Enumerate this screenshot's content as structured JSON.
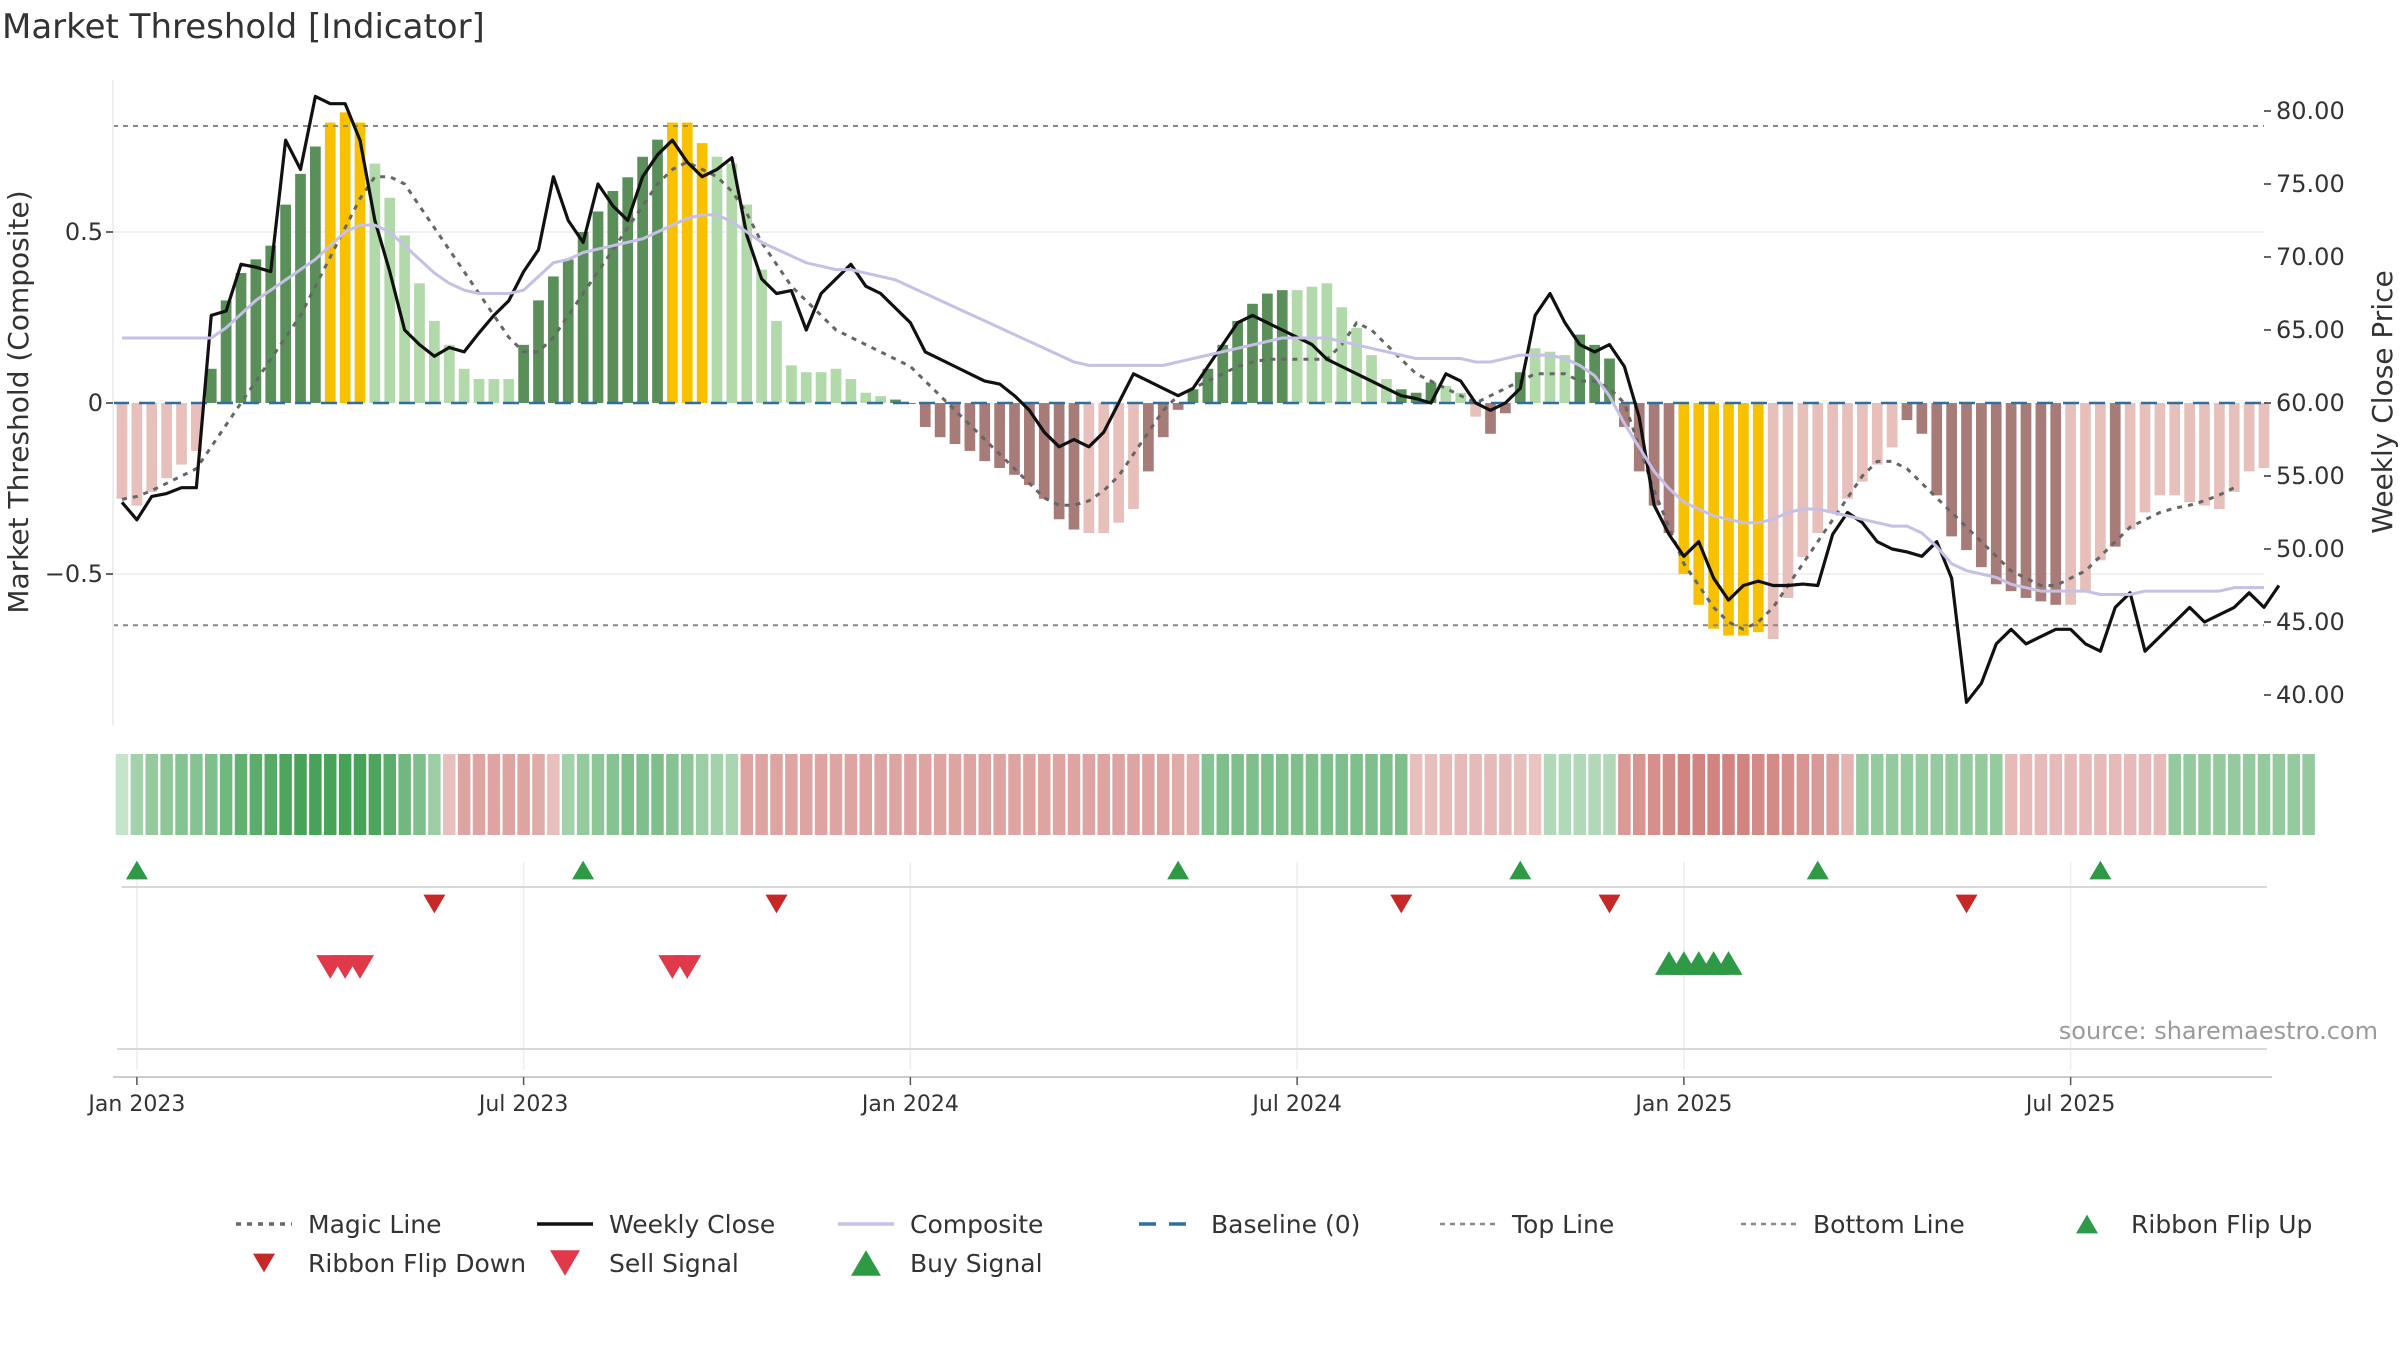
{
  "chart_data": {
    "type": "bar",
    "title": "Market Threshold [Indicator]",
    "ylabel_left": "Market Threshold (Composite)",
    "ylabel_right": "Weekly Close Price",
    "source": "source: sharemaestro.com",
    "ylim_left": [
      -0.95,
      0.98
    ],
    "ylim_right": [
      38.0,
      82.0
    ],
    "yticks_left": [
      {
        "value": 0.5,
        "label": "0.5"
      },
      {
        "value": 0,
        "label": "0"
      },
      {
        "value": -0.5,
        "label": "−0.5"
      }
    ],
    "yticks_right": [
      {
        "value": 80,
        "label": "80.00"
      },
      {
        "value": 75,
        "label": "75.00"
      },
      {
        "value": 70,
        "label": "70.00"
      },
      {
        "value": 65,
        "label": "65.00"
      },
      {
        "value": 60,
        "label": "60.00"
      },
      {
        "value": 55,
        "label": "55.00"
      },
      {
        "value": 50,
        "label": "50.00"
      },
      {
        "value": 45,
        "label": "45.00"
      },
      {
        "value": 40,
        "label": "40.00"
      }
    ],
    "xticks": [
      {
        "week": 1,
        "label": "Jan 2023"
      },
      {
        "week": 27,
        "label": "Jul 2023"
      },
      {
        "week": 53,
        "label": "Jan 2024"
      },
      {
        "week": 79,
        "label": "Jul 2024"
      },
      {
        "week": 105,
        "label": "Jan 2025"
      },
      {
        "week": 131,
        "label": "Jul 2025"
      }
    ],
    "top_line": 0.81,
    "bottom_line": -0.65,
    "baseline": 0,
    "weeks": 145,
    "bars": [
      -0.28,
      -0.3,
      -0.26,
      -0.22,
      -0.18,
      -0.14,
      0.1,
      0.3,
      0.38,
      0.42,
      0.46,
      0.58,
      0.67,
      0.75,
      0.82,
      0.85,
      0.82,
      0.7,
      0.6,
      0.49,
      0.35,
      0.24,
      0.17,
      0.1,
      0.07,
      0.07,
      0.07,
      0.17,
      0.3,
      0.37,
      0.42,
      0.5,
      0.56,
      0.62,
      0.66,
      0.72,
      0.77,
      0.82,
      0.82,
      0.76,
      0.72,
      0.7,
      0.58,
      0.39,
      0.24,
      0.11,
      0.09,
      0.09,
      0.1,
      0.07,
      0.03,
      0.02,
      0.01,
      0.0,
      -0.07,
      -0.1,
      -0.12,
      -0.14,
      -0.17,
      -0.19,
      -0.21,
      -0.24,
      -0.28,
      -0.34,
      -0.37,
      -0.38,
      -0.38,
      -0.35,
      -0.31,
      -0.2,
      -0.1,
      -0.02,
      0.04,
      0.1,
      0.17,
      0.24,
      0.29,
      0.32,
      0.33,
      0.33,
      0.34,
      0.35,
      0.28,
      0.22,
      0.14,
      0.07,
      0.04,
      0.03,
      0.06,
      0.05,
      0.03,
      -0.04,
      -0.09,
      -0.03,
      0.09,
      0.16,
      0.15,
      0.14,
      0.2,
      0.17,
      0.13,
      -0.07,
      -0.2,
      -0.3,
      -0.38,
      -0.5,
      -0.59,
      -0.66,
      -0.68,
      -0.68,
      -0.67,
      -0.69,
      -0.57,
      -0.45,
      -0.38,
      -0.32,
      -0.28,
      -0.23,
      -0.18,
      -0.13,
      -0.05,
      -0.09,
      -0.27,
      -0.39,
      -0.43,
      -0.48,
      -0.53,
      -0.55,
      -0.57,
      -0.58,
      -0.59,
      -0.59,
      -0.55,
      -0.46,
      -0.42,
      -0.37,
      -0.32,
      -0.27,
      -0.27,
      -0.29,
      -0.3,
      -0.31,
      -0.26,
      -0.2,
      -0.19
    ],
    "bar_colors": {
      "strong_up": "#5a8f5a",
      "weak_up": "#b2d9aa",
      "strong_down": "#a77b78",
      "weak_down": "#e7c0bb",
      "extreme": "#f7c100"
    },
    "bar_classes": "wwwwwwsssssssseeewwwwwwwwwwsssssssssseeewwwwwwwwwwwwssssssssssssswwwwsssssssssswwwwwwwssswwwssswwwssssssseeeeeewwwwwwwwwssssssssssswwwswwwww",
    "series": [
      {
        "name": "Magic Line",
        "style": "dotted",
        "color": "#666666",
        "values": [
          53.4,
          53.6,
          54.0,
          54.5,
          55.0,
          55.5,
          57.0,
          58.5,
          60.0,
          61.5,
          63.0,
          64.5,
          66.0,
          68.0,
          70.0,
          72.0,
          74.0,
          75.5,
          75.5,
          75.0,
          73.5,
          72.0,
          70.5,
          69.0,
          67.5,
          66.0,
          64.5,
          63.5,
          63.5,
          64.5,
          66.0,
          67.5,
          69.0,
          70.5,
          72.0,
          73.5,
          75.0,
          76.0,
          76.5,
          76.0,
          75.5,
          74.5,
          73.0,
          71.0,
          69.5,
          68.0,
          67.0,
          66.0,
          65.0,
          64.5,
          64.0,
          63.5,
          63.0,
          62.5,
          61.5,
          60.5,
          59.5,
          58.5,
          57.5,
          56.5,
          55.5,
          54.5,
          53.5,
          53.0,
          53.0,
          53.3,
          54.0,
          55.0,
          56.5,
          58.0,
          59.5,
          60.5,
          61.0,
          61.5,
          62.0,
          62.5,
          62.8,
          63.0,
          63.0,
          63.0,
          63.0,
          63.0,
          64.0,
          65.5,
          65.0,
          64.0,
          63.0,
          62.0,
          61.5,
          61.0,
          60.5,
          60.0,
          60.5,
          61.0,
          61.5,
          62.0,
          62.0,
          62.0,
          61.5,
          61.5,
          61.0,
          60.0,
          57.0,
          54.0,
          51.5,
          49.0,
          47.5,
          46.0,
          45.0,
          44.5,
          45.0,
          46.0,
          47.5,
          49.0,
          50.5,
          52.0,
          53.5,
          55.0,
          56.0,
          56.0,
          55.5,
          54.5,
          53.5,
          52.5,
          51.5,
          50.5,
          49.5,
          48.5,
          48.0,
          47.5,
          47.5,
          48.0,
          48.5,
          49.5,
          50.5,
          51.5,
          52.0,
          52.5,
          52.8,
          53.0,
          53.3,
          53.7,
          54.2
        ]
      },
      {
        "name": "Weekly Close",
        "style": "solid",
        "color": "#111111",
        "values": [
          53.2,
          52.0,
          53.6,
          53.8,
          54.2,
          54.2,
          66.0,
          66.3,
          69.5,
          69.3,
          69.0,
          78.0,
          76.0,
          81.0,
          80.5,
          80.5,
          78.0,
          72.5,
          69.0,
          65.0,
          64.0,
          63.2,
          63.8,
          63.5,
          64.8,
          66.0,
          67.0,
          69.0,
          70.5,
          75.5,
          72.5,
          71.0,
          75.0,
          73.5,
          72.5,
          75.5,
          77.0,
          78.0,
          76.5,
          75.5,
          76.0,
          76.8,
          71.5,
          68.5,
          67.5,
          67.7,
          65.0,
          67.5,
          68.5,
          69.5,
          68.0,
          67.5,
          66.5,
          65.5,
          63.5,
          63.0,
          62.5,
          62.0,
          61.5,
          61.3,
          60.5,
          59.5,
          58.0,
          57.0,
          57.5,
          57.0,
          58.0,
          60.0,
          62.0,
          61.5,
          61.0,
          60.5,
          61.0,
          62.5,
          64.0,
          65.5,
          66.0,
          65.5,
          65.0,
          64.5,
          64.0,
          63.0,
          62.5,
          62.0,
          61.5,
          61.0,
          60.5,
          60.3,
          60.0,
          62.0,
          61.5,
          60.0,
          59.5,
          60.0,
          61.0,
          66.0,
          67.5,
          65.5,
          64.0,
          63.5,
          64.0,
          62.5,
          59.0,
          53.0,
          51.0,
          49.5,
          50.5,
          48.0,
          46.5,
          47.5,
          47.8,
          47.5,
          47.5,
          47.6,
          47.5,
          51.0,
          52.5,
          51.8,
          50.5,
          50.0,
          49.8,
          49.5,
          50.5,
          48.0,
          39.5,
          40.8,
          43.5,
          44.5,
          43.5,
          44.0,
          44.5,
          44.5,
          43.5,
          43.0,
          46.0,
          47.0,
          43.0,
          44.0,
          45.0,
          46.0,
          45.0,
          45.5,
          46.0,
          47.0,
          46.0,
          47.5
        ]
      },
      {
        "name": "Composite",
        "style": "solid",
        "color": "#c6bfe6",
        "values": [
          0.19,
          0.19,
          0.19,
          0.19,
          0.19,
          0.19,
          0.19,
          0.22,
          0.26,
          0.3,
          0.33,
          0.36,
          0.39,
          0.42,
          0.46,
          0.5,
          0.52,
          0.52,
          0.5,
          0.46,
          0.42,
          0.38,
          0.35,
          0.33,
          0.32,
          0.32,
          0.32,
          0.33,
          0.37,
          0.41,
          0.42,
          0.44,
          0.45,
          0.46,
          0.47,
          0.48,
          0.5,
          0.52,
          0.54,
          0.55,
          0.55,
          0.53,
          0.5,
          0.47,
          0.45,
          0.43,
          0.41,
          0.4,
          0.39,
          0.39,
          0.38,
          0.37,
          0.36,
          0.34,
          0.32,
          0.3,
          0.28,
          0.26,
          0.24,
          0.22,
          0.2,
          0.18,
          0.16,
          0.14,
          0.12,
          0.11,
          0.11,
          0.11,
          0.11,
          0.11,
          0.11,
          0.12,
          0.13,
          0.14,
          0.15,
          0.16,
          0.17,
          0.18,
          0.19,
          0.19,
          0.19,
          0.19,
          0.18,
          0.17,
          0.16,
          0.15,
          0.14,
          0.13,
          0.13,
          0.13,
          0.13,
          0.12,
          0.12,
          0.13,
          0.14,
          0.14,
          0.14,
          0.13,
          0.11,
          0.08,
          0.02,
          -0.06,
          -0.13,
          -0.2,
          -0.25,
          -0.29,
          -0.31,
          -0.33,
          -0.34,
          -0.35,
          -0.35,
          -0.34,
          -0.32,
          -0.31,
          -0.31,
          -0.32,
          -0.33,
          -0.34,
          -0.35,
          -0.36,
          -0.36,
          -0.38,
          -0.42,
          -0.47,
          -0.49,
          -0.5,
          -0.51,
          -0.53,
          -0.54,
          -0.55,
          -0.55,
          -0.55,
          -0.55,
          -0.56,
          -0.56,
          -0.56,
          -0.55,
          -0.55,
          -0.55,
          -0.55,
          -0.55,
          -0.55,
          -0.54,
          -0.54,
          -0.54
        ]
      }
    ],
    "ribbon": {
      "values": [
        0.1,
        0.35,
        0.45,
        0.5,
        0.55,
        0.55,
        0.6,
        0.7,
        0.8,
        0.85,
        0.9,
        0.95,
        1.0,
        1.0,
        1.0,
        1.0,
        1.0,
        0.95,
        0.85,
        0.7,
        0.6,
        0.4,
        -0.3,
        -0.55,
        -0.55,
        -0.55,
        -0.55,
        -0.55,
        -0.5,
        -0.3,
        0.35,
        0.45,
        0.5,
        0.55,
        0.6,
        0.6,
        0.6,
        0.55,
        0.5,
        0.4,
        0.35,
        0.3,
        -0.55,
        -0.55,
        -0.55,
        -0.55,
        -0.55,
        -0.55,
        -0.55,
        -0.55,
        -0.55,
        -0.55,
        -0.55,
        -0.55,
        -0.55,
        -0.55,
        -0.55,
        -0.55,
        -0.55,
        -0.55,
        -0.55,
        -0.55,
        -0.55,
        -0.55,
        -0.55,
        -0.55,
        -0.55,
        -0.55,
        -0.55,
        -0.55,
        -0.55,
        -0.5,
        -0.45,
        0.55,
        0.6,
        0.6,
        0.6,
        0.6,
        0.6,
        0.6,
        0.6,
        0.6,
        0.6,
        0.6,
        0.6,
        0.6,
        0.6,
        -0.3,
        -0.3,
        -0.35,
        -0.35,
        -0.35,
        -0.35,
        -0.35,
        -0.3,
        -0.25,
        0.25,
        0.25,
        0.25,
        0.25,
        0.25,
        -0.65,
        -0.7,
        -0.75,
        -0.8,
        -0.85,
        -0.85,
        -0.85,
        -0.85,
        -0.85,
        -0.8,
        -0.8,
        -0.75,
        -0.7,
        -0.65,
        -0.6,
        -0.4,
        0.45,
        0.45,
        0.45,
        0.45,
        0.45,
        0.45,
        0.45,
        0.45,
        0.45,
        0.45,
        -0.35,
        -0.35,
        -0.35,
        -0.35,
        -0.35,
        -0.35,
        -0.35,
        -0.35,
        -0.35,
        -0.35,
        -0.35,
        0.45,
        0.45,
        0.45,
        0.45,
        0.45,
        0.45,
        0.45,
        0.45,
        0.45,
        0.45
      ],
      "up_color": "#3d9e4f",
      "down_color": "#c96d69"
    },
    "ribbon_flip_up": [
      1,
      31,
      71,
      94,
      114,
      133
    ],
    "ribbon_flip_down": [
      21,
      44,
      86,
      100,
      124
    ],
    "sell_signals": [
      14,
      15,
      16,
      37,
      38
    ],
    "buy_signals": [
      104,
      105,
      106,
      107,
      108
    ],
    "legend": [
      {
        "name": "Magic Line",
        "kind": "dotted",
        "color": "#666666"
      },
      {
        "name": "Weekly Close",
        "kind": "solid",
        "color": "#111111"
      },
      {
        "name": "Composite",
        "kind": "solid",
        "color": "#c6bfe6"
      },
      {
        "name": "Baseline (0)",
        "kind": "dashed",
        "color": "#2f6f9f"
      },
      {
        "name": "Top Line",
        "kind": "dotted-light",
        "color": "#888888"
      },
      {
        "name": "Bottom Line",
        "kind": "dotted-light",
        "color": "#888888"
      },
      {
        "name": "Ribbon Flip Up",
        "kind": "tri-up",
        "color": "#2e9a46"
      },
      {
        "name": "Ribbon Flip Down",
        "kind": "tri-down",
        "color": "#c62828"
      },
      {
        "name": "Sell Signal",
        "kind": "tri-down-lg",
        "color": "#e0394a"
      },
      {
        "name": "Buy Signal",
        "kind": "tri-up-lg",
        "color": "#2e9a46"
      }
    ]
  }
}
